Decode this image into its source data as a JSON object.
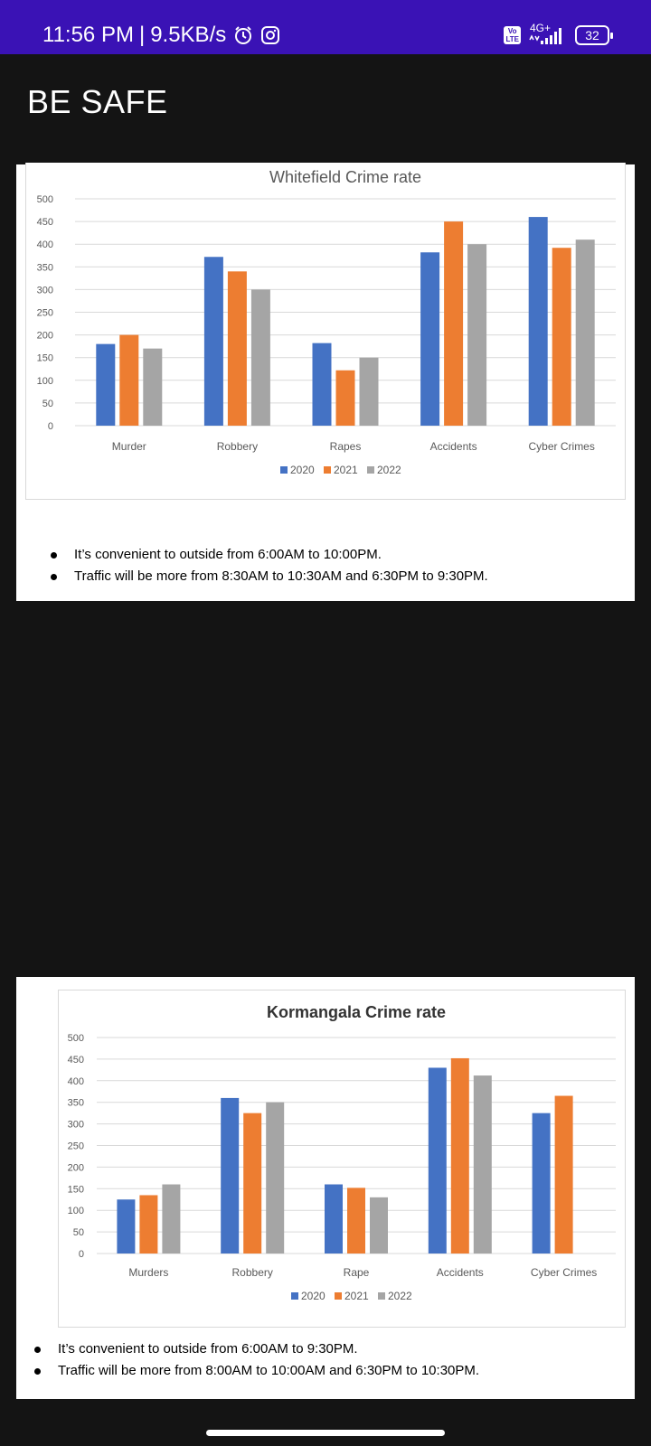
{
  "status_bar": {
    "time": "11:56 PM",
    "separator": "|",
    "speed": "9.5KB/s",
    "icons": [
      "alarm-icon",
      "instagram-icon",
      "volte-icon",
      "signal-icon",
      "battery-icon"
    ],
    "volte_label_top": "Vo",
    "volte_label_bottom": "LTE",
    "network": "4G+",
    "battery": "32"
  },
  "page": {
    "title": "BE SAFE"
  },
  "chart_data": [
    {
      "type": "bar",
      "title": "Whitefield Crime rate",
      "categories": [
        "Murder",
        "Robbery",
        "Rapes",
        "Accidents",
        "Cyber Crimes"
      ],
      "series": [
        {
          "name": "2020",
          "color": "#4472c4",
          "values": [
            180,
            372,
            182,
            382,
            460
          ]
        },
        {
          "name": "2021",
          "color": "#ed7d31",
          "values": [
            200,
            340,
            122,
            450,
            392
          ]
        },
        {
          "name": "2022",
          "color": "#a5a5a5",
          "values": [
            170,
            300,
            150,
            400,
            410
          ]
        }
      ],
      "ylim": [
        0,
        500
      ],
      "yticks": [
        "500",
        "450",
        "400",
        "350",
        "300",
        "250",
        "200",
        "150",
        "100",
        "50",
        "0"
      ],
      "grid": true,
      "legend_position": "bottom",
      "title_bold": false
    },
    {
      "type": "bar",
      "title": "Kormangala Crime rate",
      "categories": [
        "Murders",
        "Robbery",
        "Rape",
        "Accidents",
        "Cyber Crimes"
      ],
      "series": [
        {
          "name": "2020",
          "color": "#4472c4",
          "values": [
            125,
            360,
            160,
            430,
            325
          ]
        },
        {
          "name": "2021",
          "color": "#ed7d31",
          "values": [
            135,
            325,
            152,
            452,
            365
          ]
        },
        {
          "name": "2022",
          "color": "#a5a5a5",
          "values": [
            160,
            350,
            130,
            412,
            0
          ]
        }
      ],
      "ylim": [
        0,
        500
      ],
      "yticks": [
        "500",
        "450",
        "400",
        "350",
        "300",
        "250",
        "200",
        "150",
        "100",
        "50",
        "0"
      ],
      "grid": true,
      "legend_position": "bottom",
      "title_bold": true
    }
  ],
  "notes": [
    [
      "It’s convenient to outside from 6:00AM to 10:00PM.",
      "Traffic will be more from 8:30AM to 10:30AM and 6:30PM to 9:30PM."
    ],
    [
      "It’s convenient to outside from 6:00AM to 9:30PM.",
      "Traffic will be more from 8:00AM to 10:00AM and 6:30PM to 10:30PM."
    ]
  ]
}
